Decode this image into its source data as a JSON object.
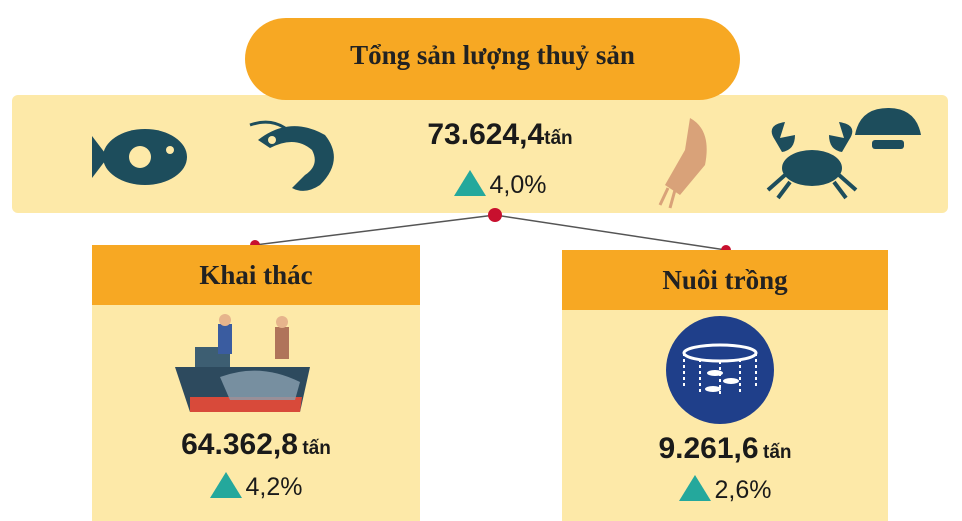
{
  "header": {
    "title": "Tổng sản lượng thuỷ sản"
  },
  "total": {
    "value": "73.624,4",
    "unit": "tấn",
    "growth": "4,0%"
  },
  "branches": [
    {
      "title": "Khai thác",
      "value": "64.362,8",
      "unit": "tấn",
      "growth": "4,2%"
    },
    {
      "title": "Nuôi trồng",
      "value": "9.261,6",
      "unit": "tấn",
      "growth": "2,6%"
    }
  ]
}
